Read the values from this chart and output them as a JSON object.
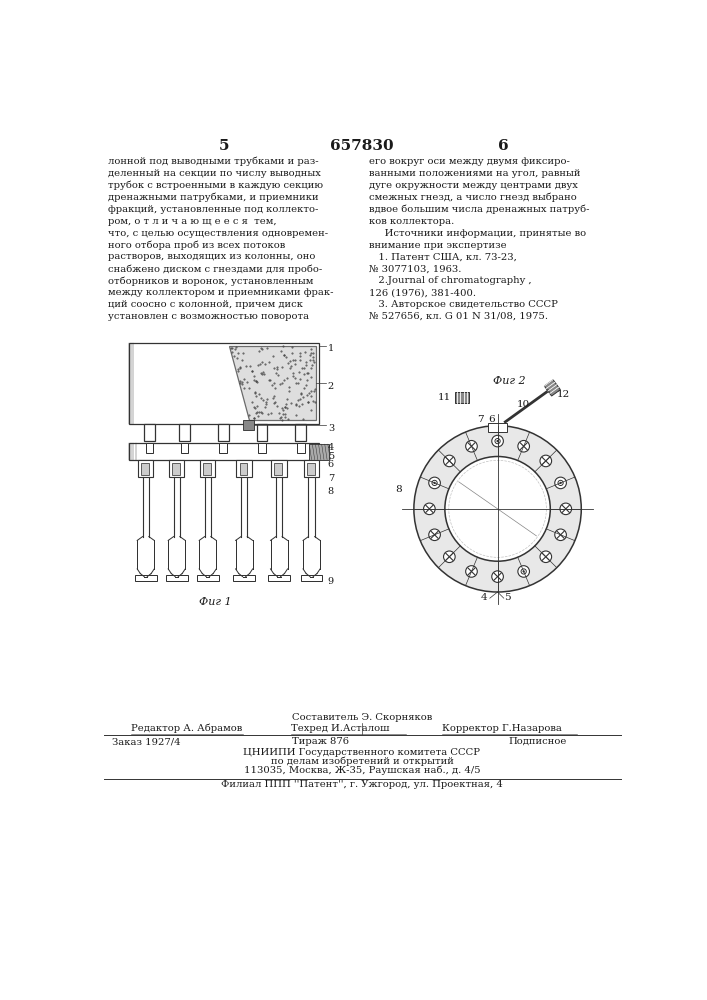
{
  "page_number_left": "5",
  "page_number_right": "6",
  "patent_number": "657830",
  "col_left_text": [
    "лонной под выводными трубками и раз-",
    "деленный на секции по числу выводных",
    "трубок с встроенными в каждую секцию",
    "дренажными патрубками, и приемники",
    "фракций, установленные под коллекто-",
    "ром, о т л и ч а ю щ е е с я  тем,",
    "что, с целью осуществления одновремен-",
    "ного отбора проб из всех потоков",
    "растворов, выходящих из колонны, оно",
    "снабжено диском с гнездами для пробо-",
    "отборников и воронок, установленным",
    "между коллектором и приемниками фрак-",
    "ций соосно с колонной, причем диск",
    "установлен с возможностью поворота"
  ],
  "col_right_text": [
    "его вокруг оси между двумя фиксиро-",
    "ванными положениями на угол, равный",
    "дуге окружности между центрами двух",
    "смежных гнезд, а число гнезд выбрано",
    "вдвое большим числа дренажных патруб-",
    "ков коллектора.",
    "     Источники информации, принятые во",
    "внимание при экспертизе",
    "   1. Патент США, кл. 73-23,",
    "№ 3077103, 1963.",
    "   2.Journal of chromatography ,",
    "126 (1976), 381-400.",
    "   3. Авторское свидетельство СССР",
    "№ 527656, кл. G 01 N 31/08, 1975."
  ],
  "fig1_label": "Фиг 1",
  "fig2_label": "Фиг 2",
  "footer_sestavitel": "Составитель Э. Скорняков",
  "footer_redaktor": "Редактор А. Абрамов",
  "footer_tehred": "Техред И.Асталош",
  "footer_korrektor": "Корректор Г.Назарова",
  "footer_order": "Заказ 1927/4",
  "footer_tirazh": "Тираж 876",
  "footer_podpisnoe": "Подписное",
  "footer_org1": "ЦНИИПИ Государственного комитета СССР",
  "footer_org2": "по делам изобретений и открытий",
  "footer_org3": "113035, Москва, Ж-35, Раушская наб., д. 4/5",
  "footer_filial": "Филиал ППП ''Патент'', г. Ужгород, ул. Проектная, 4",
  "bg_color": "#ffffff",
  "text_color": "#1a1a1a",
  "line_color": "#333333"
}
